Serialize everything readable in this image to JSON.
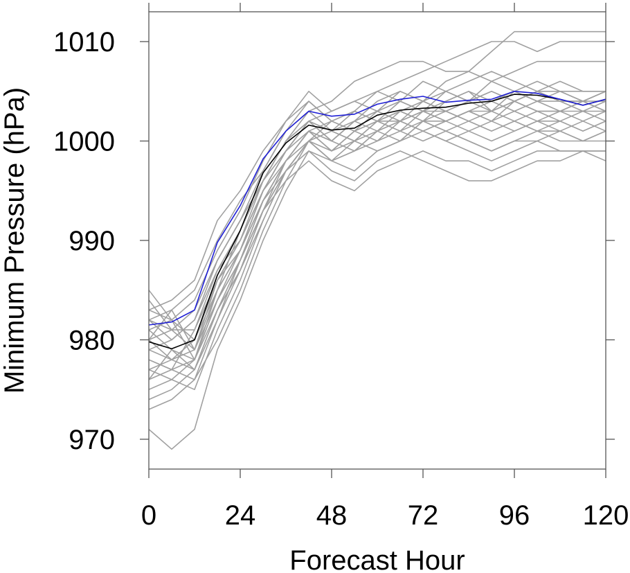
{
  "chart_data": {
    "type": "line",
    "title": "",
    "xlabel": "Forecast Hour",
    "ylabel": "Minimum Pressure (hPa)",
    "xlim": [
      0,
      120
    ],
    "ylim": [
      967,
      1013
    ],
    "xticks": [
      0,
      24,
      48,
      72,
      96,
      120
    ],
    "yticks": [
      970,
      980,
      990,
      1000,
      1010
    ],
    "grid": false,
    "legend": "none",
    "colors": {
      "ensemble": "#a0a0a0",
      "black": "#000000",
      "blue": "#1f1fd6",
      "axis": "#555555"
    },
    "highlight_series": [
      {
        "color": "#000000",
        "x": [
          0,
          6,
          12,
          18,
          24,
          30,
          36,
          42,
          48,
          54,
          60,
          66,
          72,
          78,
          84,
          90,
          96,
          102,
          108,
          114,
          120
        ],
        "values": [
          979.8,
          979.1,
          980.0,
          986.5,
          991.0,
          996.8,
          999.8,
          1001.6,
          1001.1,
          1001.3,
          1002.6,
          1003.1,
          1003.3,
          1003.4,
          1003.8,
          1004.0,
          1004.7,
          1004.6,
          1004.2,
          1003.6,
          1004.2
        ]
      },
      {
        "color": "#1f1fd6",
        "x": [
          0,
          6,
          12,
          18,
          24,
          30,
          36,
          42,
          48,
          54,
          60,
          66,
          72,
          78,
          84,
          90,
          96,
          102,
          108,
          114,
          120
        ],
        "values": [
          981.5,
          981.8,
          983.0,
          989.8,
          993.5,
          998.2,
          1001.0,
          1003.0,
          1002.5,
          1002.7,
          1003.7,
          1004.2,
          1004.5,
          1003.9,
          1004.1,
          1004.2,
          1005.0,
          1004.8,
          1004.2,
          1003.6,
          1004.2
        ]
      }
    ],
    "ensemble_series": [
      {
        "x": [
          0,
          6,
          12,
          18,
          24,
          30,
          36,
          42,
          48,
          54,
          60,
          66,
          72,
          78,
          84,
          90,
          96,
          102,
          108,
          114,
          120
        ],
        "values": [
          985,
          982,
          978,
          985,
          991,
          996,
          1000,
          1003,
          1001,
          1002,
          1004,
          1005,
          1004,
          1006,
          1007,
          1009,
          1011,
          1011,
          1011,
          1011,
          1011
        ]
      },
      {
        "x": [
          0,
          6,
          12,
          18,
          24,
          30,
          36,
          42,
          48,
          54,
          60,
          66,
          72,
          78,
          84,
          90,
          96,
          102,
          108,
          114,
          120
        ],
        "values": [
          983,
          984,
          986,
          992,
          995,
          999,
          1002,
          1004,
          1002,
          1003,
          1005,
          1006,
          1007,
          1008,
          1009,
          1010,
          1010,
          1009,
          1010,
          1010,
          1010
        ]
      },
      {
        "x": [
          0,
          6,
          12,
          18,
          24,
          30,
          36,
          42,
          48,
          54,
          60,
          66,
          72,
          78,
          84,
          90,
          96,
          102,
          108,
          114,
          120
        ],
        "values": [
          982,
          983,
          985,
          990,
          994,
          997,
          1001,
          1003,
          1004,
          1006,
          1007,
          1008,
          1008,
          1007,
          1007,
          1006,
          1007,
          1008,
          1008,
          1008,
          1008
        ]
      },
      {
        "x": [
          0,
          6,
          12,
          18,
          24,
          30,
          36,
          42,
          48,
          54,
          60,
          66,
          72,
          78,
          84,
          90,
          96,
          102,
          108,
          114,
          120
        ],
        "values": [
          981,
          982,
          984,
          989,
          993,
          998,
          1002,
          1005,
          1003,
          1004,
          1005,
          1004,
          1006,
          1005,
          1006,
          1007,
          1006,
          1005,
          1005,
          1004,
          1005
        ]
      },
      {
        "x": [
          0,
          6,
          12,
          18,
          24,
          30,
          36,
          42,
          48,
          54,
          60,
          66,
          72,
          78,
          84,
          90,
          96,
          102,
          108,
          114,
          120
        ],
        "values": [
          980,
          981,
          983,
          988,
          992,
          997,
          1001,
          1004,
          1002,
          1001,
          1003,
          1004,
          1003,
          1005,
          1004,
          1005,
          1004,
          1005,
          1004,
          1004,
          1005
        ]
      },
      {
        "x": [
          0,
          6,
          12,
          18,
          24,
          30,
          36,
          42,
          48,
          54,
          60,
          66,
          72,
          78,
          84,
          90,
          96,
          102,
          108,
          114,
          120
        ],
        "values": [
          984,
          981,
          979,
          986,
          990,
          995,
          999,
          1002,
          1000,
          999,
          1001,
          1002,
          1003,
          1002,
          1003,
          1002,
          1004,
          1003,
          1002,
          1003,
          1002
        ]
      },
      {
        "x": [
          0,
          6,
          12,
          18,
          24,
          30,
          36,
          42,
          48,
          54,
          60,
          66,
          72,
          78,
          84,
          90,
          96,
          102,
          108,
          114,
          120
        ],
        "values": [
          979,
          978,
          980,
          985,
          989,
          994,
          998,
          1001,
          999,
          1000,
          1002,
          1001,
          1002,
          1003,
          1002,
          1001,
          1002,
          1001,
          1001,
          1000,
          1001
        ]
      },
      {
        "x": [
          0,
          6,
          12,
          18,
          24,
          30,
          36,
          42,
          48,
          54,
          60,
          66,
          72,
          78,
          84,
          90,
          96,
          102,
          108,
          114,
          120
        ],
        "values": [
          978,
          977,
          976,
          982,
          988,
          994,
          997,
          1000,
          998,
          999,
          1000,
          1001,
          1000,
          1001,
          1000,
          999,
          1000,
          1000,
          1001,
          1000,
          1001
        ]
      },
      {
        "x": [
          0,
          6,
          12,
          18,
          24,
          30,
          36,
          42,
          48,
          54,
          60,
          66,
          72,
          78,
          84,
          90,
          96,
          102,
          108,
          114,
          120
        ],
        "values": [
          977,
          976,
          975,
          981,
          986,
          992,
          997,
          999,
          997,
          996,
          998,
          999,
          998,
          997,
          996,
          996,
          997,
          998,
          998,
          999,
          998
        ]
      },
      {
        "x": [
          0,
          6,
          12,
          18,
          24,
          30,
          36,
          42,
          48,
          54,
          60,
          66,
          72,
          78,
          84,
          90,
          96,
          102,
          108,
          114,
          120
        ],
        "values": [
          976,
          979,
          977,
          983,
          987,
          993,
          996,
          998,
          996,
          995,
          997,
          998,
          999,
          998,
          998,
          997,
          998,
          999,
          999,
          999,
          999
        ]
      },
      {
        "x": [
          0,
          6,
          12,
          18,
          24,
          30,
          36,
          42,
          48,
          54,
          60,
          66,
          72,
          78,
          84,
          90,
          96,
          102,
          108,
          114,
          120
        ],
        "values": [
          975,
          976,
          978,
          984,
          989,
          995,
          998,
          1001,
          1000,
          1002,
          1003,
          1002,
          1001,
          1002,
          1003,
          1002,
          1003,
          1002,
          1003,
          1002,
          1003
        ]
      },
      {
        "x": [
          0,
          6,
          12,
          18,
          24,
          30,
          36,
          42,
          48,
          54,
          60,
          66,
          72,
          78,
          84,
          90,
          96,
          102,
          108,
          114,
          120
        ],
        "values": [
          974,
          975,
          977,
          982,
          987,
          993,
          997,
          1000,
          1001,
          1000,
          999,
          1000,
          1002,
          1001,
          1000,
          999,
          1000,
          1001,
          1000,
          1000,
          1000
        ]
      },
      {
        "x": [
          0,
          6,
          12,
          18,
          24,
          30,
          36,
          42,
          48,
          54,
          60,
          66,
          72,
          78,
          84,
          90,
          96,
          102,
          108,
          114,
          120
        ],
        "values": [
          973,
          974,
          976,
          980,
          985,
          991,
          996,
          1000,
          998,
          1000,
          1001,
          1002,
          1001,
          1000,
          1001,
          1002,
          1001,
          1002,
          1001,
          1002,
          1001
        ]
      },
      {
        "x": [
          0,
          6,
          12,
          18,
          24,
          30,
          36,
          42,
          48,
          54,
          60,
          66,
          72,
          78,
          84,
          90,
          96,
          102,
          108,
          114,
          120
        ],
        "values": [
          971,
          969,
          971,
          979,
          984,
          990,
          995,
          999,
          998,
          997,
          999,
          1000,
          1001,
          1002,
          1001,
          1000,
          1001,
          1002,
          1002,
          1001,
          1002
        ]
      },
      {
        "x": [
          0,
          6,
          12,
          18,
          24,
          30,
          36,
          42,
          48,
          54,
          60,
          66,
          72,
          78,
          84,
          90,
          96,
          102,
          108,
          114,
          120
        ],
        "values": [
          982,
          980,
          982,
          987,
          991,
          996,
          1000,
          1002,
          1001,
          1003,
          1002,
          1003,
          1004,
          1003,
          1004,
          1003,
          1004,
          1005,
          1004,
          1004,
          1004
        ]
      },
      {
        "x": [
          0,
          6,
          12,
          18,
          24,
          30,
          36,
          42,
          48,
          54,
          60,
          66,
          72,
          78,
          84,
          90,
          96,
          102,
          108,
          114,
          120
        ],
        "values": [
          980,
          983,
          979,
          984,
          988,
          993,
          998,
          1001,
          1002,
          1001,
          1002,
          1003,
          1002,
          1004,
          1005,
          1004,
          1005,
          1006,
          1005,
          1005,
          1005
        ]
      },
      {
        "x": [
          0,
          6,
          12,
          18,
          24,
          30,
          36,
          42,
          48,
          54,
          60,
          66,
          72,
          78,
          84,
          90,
          96,
          102,
          108,
          114,
          120
        ],
        "values": [
          978,
          977,
          981,
          987,
          990,
          995,
          999,
          1001,
          999,
          1001,
          1002,
          1001,
          1003,
          1002,
          1003,
          1004,
          1003,
          1004,
          1003,
          1004,
          1003
        ]
      },
      {
        "x": [
          0,
          6,
          12,
          18,
          24,
          30,
          36,
          42,
          48,
          54,
          60,
          66,
          72,
          78,
          84,
          90,
          96,
          102,
          108,
          114,
          120
        ],
        "values": [
          983,
          982,
          980,
          986,
          990,
          996,
          999,
          1002,
          1003,
          1004,
          1003,
          1005,
          1004,
          1005,
          1004,
          1006,
          1005,
          1004,
          1005,
          1004,
          1005
        ]
      },
      {
        "x": [
          0,
          6,
          12,
          18,
          24,
          30,
          36,
          42,
          48,
          54,
          60,
          66,
          72,
          78,
          84,
          90,
          96,
          102,
          108,
          114,
          120
        ],
        "values": [
          981,
          979,
          978,
          984,
          988,
          994,
          998,
          1001,
          1000,
          1002,
          1001,
          1003,
          1002,
          1002,
          1003,
          1003,
          1004,
          1003,
          1003,
          1003,
          1003
        ]
      },
      {
        "x": [
          0,
          6,
          12,
          18,
          24,
          30,
          36,
          42,
          48,
          54,
          60,
          66,
          72,
          78,
          84,
          90,
          96,
          102,
          108,
          114,
          120
        ],
        "values": [
          979,
          980,
          982,
          988,
          992,
          996,
          1000,
          1002,
          1001,
          1000,
          1002,
          1002,
          1003,
          1003,
          1002,
          1003,
          1002,
          1003,
          1003,
          1004,
          1003
        ]
      },
      {
        "x": [
          0,
          6,
          12,
          18,
          24,
          30,
          36,
          42,
          48,
          54,
          60,
          66,
          72,
          78,
          84,
          90,
          96,
          102,
          108,
          114,
          120
        ],
        "values": [
          977,
          978,
          979,
          985,
          989,
          994,
          998,
          1000,
          1002,
          1003,
          1002,
          1004,
          1003,
          1004,
          1005,
          1003,
          1005,
          1004,
          1004,
          1003,
          1004
        ]
      },
      {
        "x": [
          0,
          6,
          12,
          18,
          24,
          30,
          36,
          42,
          48,
          54,
          60,
          66,
          72,
          78,
          84,
          90,
          96,
          102,
          108,
          114,
          120
        ],
        "values": [
          980,
          978,
          977,
          983,
          988,
          993,
          997,
          1000,
          999,
          1001,
          1000,
          1002,
          1001,
          1000,
          999,
          998,
          999,
          1000,
          999,
          999,
          999
        ]
      },
      {
        "x": [
          0,
          6,
          12,
          18,
          24,
          30,
          36,
          42,
          48,
          54,
          60,
          66,
          72,
          78,
          84,
          90,
          96,
          102,
          108,
          114,
          120
        ],
        "values": [
          982,
          981,
          981,
          986,
          989,
          995,
          999,
          1002,
          1000,
          1002,
          1003,
          1002,
          1004,
          1003,
          1004,
          1005,
          1004,
          1005,
          1006,
          1005,
          1005
        ]
      },
      {
        "x": [
          0,
          6,
          12,
          18,
          24,
          30,
          36,
          42,
          48,
          54,
          60,
          66,
          72,
          78,
          84,
          90,
          96,
          102,
          108,
          114,
          120
        ],
        "values": [
          976,
          977,
          978,
          983,
          987,
          992,
          997,
          1000,
          998,
          999,
          1001,
          1000,
          1002,
          1001,
          1002,
          1001,
          1002,
          1001,
          1002,
          1001,
          1002
        ]
      }
    ]
  }
}
